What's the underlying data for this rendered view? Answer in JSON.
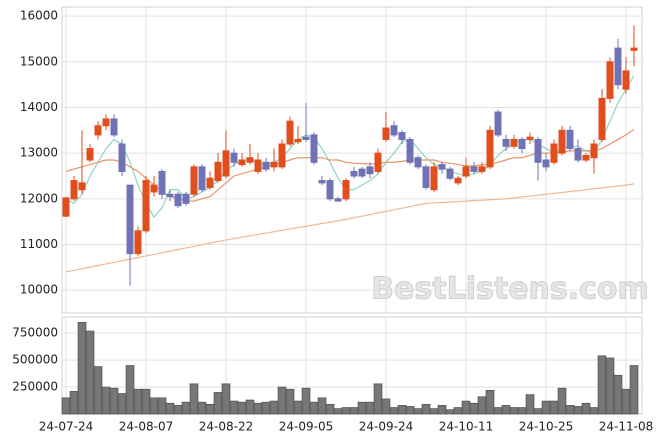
{
  "chart_data": [
    {
      "type": "candlestick",
      "categories": [
        "24-07-24",
        null,
        null,
        null,
        null,
        null,
        null,
        null,
        null,
        null,
        "24-08-07",
        null,
        null,
        null,
        null,
        null,
        null,
        null,
        null,
        null,
        "24-08-22",
        null,
        null,
        null,
        null,
        null,
        null,
        null,
        null,
        null,
        "24-09-05",
        null,
        null,
        null,
        null,
        null,
        null,
        null,
        null,
        null,
        "24-09-24",
        null,
        null,
        null,
        null,
        null,
        null,
        null,
        null,
        null,
        "24-10-11",
        null,
        null,
        null,
        null,
        null,
        null,
        null,
        null,
        null,
        "24-10-25",
        null,
        null,
        null,
        null,
        null,
        null,
        null,
        null,
        null,
        "24-11-08",
        null
      ],
      "open": [
        11620,
        12000,
        12200,
        12850,
        13400,
        13600,
        13750,
        13200,
        12300,
        10800,
        11300,
        12150,
        12600,
        12100,
        12100,
        12100,
        12100,
        12700,
        12250,
        12400,
        12500,
        13000,
        12750,
        12800,
        12600,
        12800,
        12700,
        12700,
        13200,
        13250,
        13350,
        13400,
        12400,
        12400,
        12000,
        12000,
        12600,
        12650,
        12700,
        12600,
        13300,
        13600,
        13450,
        13300,
        12900,
        12700,
        12200,
        12750,
        12650,
        12350,
        12500,
        12700,
        12600,
        12700,
        13900,
        13300,
        13150,
        13300,
        13300,
        13300,
        12850,
        12800,
        13000,
        13500,
        13100,
        12850,
        12900,
        13300,
        14200,
        15300,
        14400,
        15250
      ],
      "high": [
        12050,
        12500,
        13500,
        13200,
        13700,
        13850,
        13850,
        13300,
        12300,
        11400,
        12500,
        12500,
        12650,
        12200,
        12150,
        12150,
        12750,
        12750,
        12600,
        13000,
        13500,
        13100,
        13000,
        13200,
        13000,
        12900,
        13100,
        13300,
        13800,
        13600,
        14100,
        13450,
        12500,
        12450,
        12050,
        12450,
        12700,
        12700,
        12800,
        13100,
        13900,
        13700,
        13500,
        13350,
        12950,
        12750,
        12800,
        12800,
        12700,
        12500,
        12900,
        12800,
        12800,
        13600,
        13950,
        13400,
        13400,
        13350,
        13450,
        13350,
        13000,
        13300,
        13600,
        13600,
        13300,
        13000,
        13300,
        14400,
        15100,
        15500,
        15100,
        15800
      ],
      "low": [
        11600,
        11950,
        12100,
        12800,
        13300,
        13500,
        13350,
        12500,
        10100,
        10750,
        11250,
        12050,
        12000,
        11950,
        11800,
        11850,
        12050,
        12150,
        12200,
        12350,
        12450,
        12700,
        12700,
        12750,
        12550,
        12600,
        12600,
        12650,
        13150,
        13200,
        13250,
        12750,
        12300,
        11950,
        11950,
        11950,
        12450,
        12450,
        12450,
        12550,
        13250,
        13350,
        13200,
        12750,
        12650,
        12200,
        12150,
        12550,
        12400,
        12300,
        12450,
        12550,
        12550,
        12650,
        13350,
        13050,
        13100,
        13000,
        13200,
        12400,
        12600,
        12750,
        12950,
        13050,
        12800,
        12800,
        12550,
        13250,
        14100,
        14400,
        14300,
        14900
      ],
      "close": [
        12020,
        12400,
        12350,
        13100,
        13600,
        13750,
        13400,
        12600,
        10800,
        11300,
        12400,
        12300,
        12100,
        12050,
        11850,
        11900,
        12700,
        12200,
        12450,
        12800,
        13050,
        12800,
        12850,
        12900,
        12850,
        12650,
        12800,
        13200,
        13700,
        13300,
        13300,
        12800,
        12350,
        12000,
        11950,
        12400,
        12500,
        12500,
        12550,
        13000,
        13550,
        13400,
        13300,
        12800,
        12700,
        12250,
        12700,
        12650,
        12450,
        12450,
        12700,
        12600,
        12700,
        13500,
        13400,
        13150,
        13300,
        13100,
        13350,
        12800,
        12700,
        13200,
        13500,
        13100,
        12850,
        12950,
        13200,
        14200,
        15000,
        14500,
        14800,
        15300
      ],
      "up_color": "#e04e1c",
      "down_color": "#6f72b4",
      "lines": [
        {
          "color": "#8fd3c3",
          "values": [
            12000,
            11900,
            12100,
            12500,
            12800,
            13100,
            13300,
            13200,
            12800,
            12300,
            11900,
            11600,
            11800,
            12200,
            12200,
            12000,
            12050,
            12150,
            12250,
            12400,
            12600,
            12750,
            12850,
            12850,
            12800,
            12750,
            12800,
            12900,
            13100,
            13300,
            13400,
            13350,
            13100,
            12800,
            12450,
            12200,
            12200,
            12300,
            12400,
            12550,
            12800,
            13000,
            13250,
            13300,
            13100,
            12900,
            12750,
            12700,
            12600,
            12550,
            12500,
            12550,
            12600,
            12750,
            12950,
            13100,
            13200,
            13300,
            13300,
            13200,
            13100,
            13000,
            13100,
            13150,
            13150,
            13050,
            13000,
            13300,
            13700,
            14100,
            14400,
            14700
          ]
        },
        {
          "color": "#e8956a",
          "values": [
            12600,
            12650,
            12700,
            12750,
            12800,
            12850,
            12850,
            12800,
            12700,
            12600,
            12450,
            12300,
            12150,
            12050,
            12000,
            11950,
            11950,
            12000,
            12050,
            12200,
            12350,
            12500,
            12550,
            12600,
            12650,
            12700,
            12750,
            12800,
            12850,
            12900,
            12900,
            12900,
            12900,
            12850,
            12850,
            12800,
            12780,
            12770,
            12760,
            12770,
            12800,
            12800,
            12820,
            12850,
            12850,
            12850,
            12850,
            12800,
            12780,
            12750,
            12720,
            12720,
            12740,
            12770,
            12800,
            12850,
            12900,
            12900,
            12950,
            13000,
            13000,
            13000,
            13020,
            13050,
            13050,
            13050,
            13060,
            13100,
            13200,
            13300,
            13400,
            13520
          ]
        },
        {
          "color": "#efb993",
          "values": [
            10400,
            10435,
            10470,
            10505,
            10540,
            10575,
            10610,
            10645,
            10680,
            10715,
            10750,
            10785,
            10820,
            10855,
            10890,
            10925,
            10960,
            10995,
            11030,
            11065,
            11100,
            11130,
            11160,
            11190,
            11220,
            11250,
            11280,
            11310,
            11340,
            11370,
            11400,
            11430,
            11460,
            11490,
            11520,
            11550,
            11585,
            11620,
            11655,
            11690,
            11725,
            11760,
            11795,
            11830,
            11865,
            11900,
            11910,
            11920,
            11930,
            11940,
            11950,
            11960,
            11970,
            11980,
            11990,
            12000,
            12020,
            12040,
            12060,
            12080,
            12100,
            12120,
            12140,
            12160,
            12180,
            12200,
            12220,
            12240,
            12260,
            12280,
            12300,
            12330
          ]
        }
      ],
      "ylim": [
        9500,
        16200
      ],
      "yticks": [
        10000,
        11000,
        12000,
        13000,
        14000,
        15000,
        16000
      ],
      "grid": true,
      "watermark": "BestListens.com"
    },
    {
      "type": "bar",
      "values": [
        150000,
        210000,
        850000,
        770000,
        440000,
        250000,
        240000,
        190000,
        450000,
        230000,
        230000,
        150000,
        150000,
        100000,
        80000,
        110000,
        280000,
        110000,
        90000,
        200000,
        280000,
        120000,
        110000,
        130000,
        100000,
        110000,
        120000,
        250000,
        230000,
        120000,
        240000,
        110000,
        150000,
        90000,
        50000,
        60000,
        60000,
        110000,
        110000,
        280000,
        140000,
        60000,
        80000,
        70000,
        50000,
        90000,
        50000,
        80000,
        40000,
        60000,
        120000,
        100000,
        160000,
        220000,
        60000,
        80000,
        60000,
        60000,
        180000,
        50000,
        120000,
        120000,
        240000,
        80000,
        70000,
        100000,
        60000,
        540000,
        520000,
        360000,
        230000,
        450000
      ],
      "color": "#777777",
      "ylim": [
        0,
        900000
      ],
      "yticks": [
        250000,
        500000,
        750000
      ],
      "grid": true
    }
  ]
}
